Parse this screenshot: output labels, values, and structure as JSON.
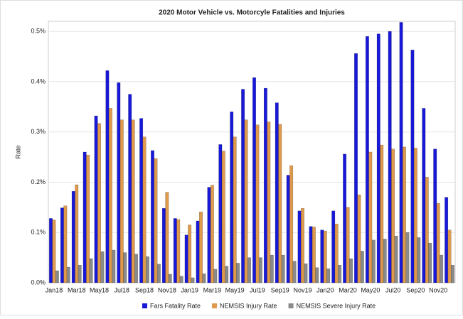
{
  "chart_data": {
    "type": "bar",
    "title": "2020 Motor Vehicle vs. Motorcyle Fatalities and Injuries",
    "y_label": "Rate",
    "categories": [
      "Jan18",
      null,
      "Mar18",
      null,
      "May18",
      null,
      "Jul18",
      null,
      "Sep18",
      null,
      "Nov18",
      null,
      "Jan19",
      null,
      "Mar19",
      null,
      "May19",
      null,
      "Jul19",
      null,
      "Sep19",
      null,
      "Nov19",
      null,
      "Jan20",
      null,
      "Mar20",
      null,
      "May20",
      null,
      "Jul20",
      null,
      "Sep20",
      null,
      "Nov20",
      null
    ],
    "series": [
      {
        "name": "Fars Fatality Rate",
        "color": "#1818d8",
        "values": [
          0.128,
          0.149,
          0.182,
          0.26,
          0.332,
          0.422,
          0.398,
          0.375,
          0.327,
          0.263,
          0.148,
          0.128,
          0.095,
          0.123,
          0.19,
          0.275,
          0.34,
          0.385,
          0.408,
          0.387,
          0.358,
          0.214,
          0.143,
          0.112,
          0.105,
          0.143,
          0.256,
          0.456,
          0.49,
          0.495,
          0.5,
          0.518,
          0.463,
          0.347,
          0.266,
          0.17
        ]
      },
      {
        "name": "NEMSIS Injury Rate",
        "color": "#df9a4c",
        "values": [
          0.125,
          0.153,
          0.195,
          0.254,
          0.317,
          0.347,
          0.324,
          0.324,
          0.29,
          0.247,
          0.18,
          0.126,
          0.115,
          0.141,
          0.194,
          0.262,
          0.29,
          0.324,
          0.314,
          0.32,
          0.315,
          0.233,
          0.148,
          0.111,
          0.103,
          0.117,
          0.15,
          0.175,
          0.26,
          0.274,
          0.266,
          0.27,
          0.268,
          0.21,
          0.158,
          0.105
        ]
      },
      {
        "name": "NEMSIS Severe Injury Rate",
        "color": "#8a8a8a",
        "values": [
          0.024,
          0.031,
          0.035,
          0.048,
          0.062,
          0.065,
          0.06,
          0.057,
          0.052,
          0.037,
          0.017,
          0.013,
          0.01,
          0.018,
          0.027,
          0.033,
          0.039,
          0.05,
          0.05,
          0.055,
          0.055,
          0.043,
          0.038,
          0.03,
          0.028,
          0.035,
          0.048,
          0.063,
          0.085,
          0.087,
          0.093,
          0.1,
          0.09,
          0.079,
          0.055,
          0.035
        ]
      }
    ],
    "ylim": [
      0,
      0.52
    ],
    "yticks": [
      {
        "value": 0,
        "label": "0.0%"
      },
      {
        "value": 0.1,
        "label": "0.1%"
      },
      {
        "value": 0.2,
        "label": "0.2%"
      },
      {
        "value": 0.3,
        "label": "0.3%"
      },
      {
        "value": 0.4,
        "label": "0.4%"
      },
      {
        "value": 0.5,
        "label": "0.5%"
      }
    ],
    "grid": true,
    "legend": "bottom"
  }
}
